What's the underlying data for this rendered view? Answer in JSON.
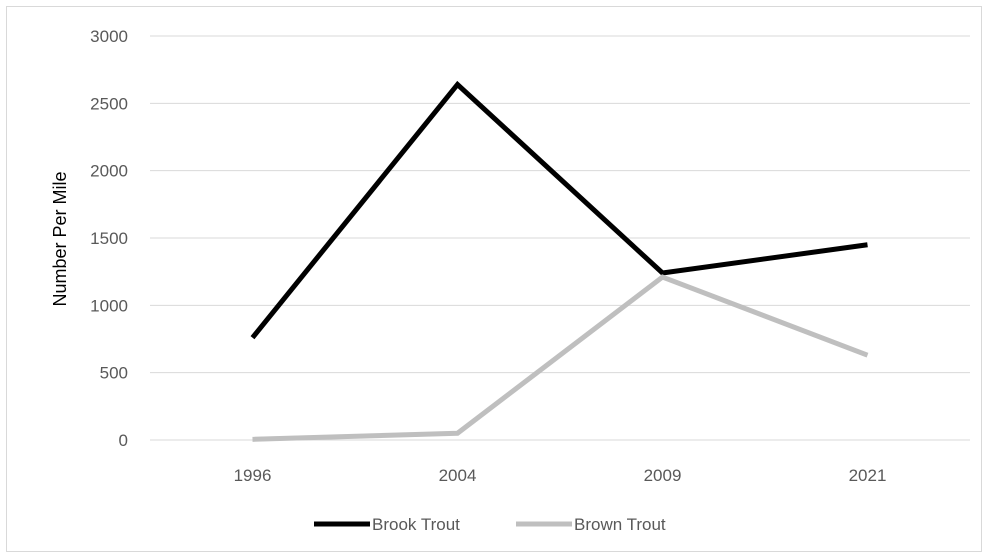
{
  "chart_data": {
    "type": "line",
    "categories": [
      "1996",
      "2004",
      "2009",
      "2021"
    ],
    "series": [
      {
        "name": "Brook Trout",
        "values": [
          760,
          2640,
          1240,
          1450
        ],
        "color": "#000000"
      },
      {
        "name": "Brown Trout",
        "values": [
          5,
          50,
          1210,
          630
        ],
        "color": "#bfbfbf"
      }
    ],
    "title": "",
    "xlabel": "",
    "ylabel": "Number Per Mile",
    "ylim": [
      0,
      3000
    ],
    "yticks": [
      "0",
      "500",
      "1000",
      "1500",
      "2000",
      "2500",
      "3000"
    ],
    "grid": true,
    "legend_position": "bottom"
  }
}
